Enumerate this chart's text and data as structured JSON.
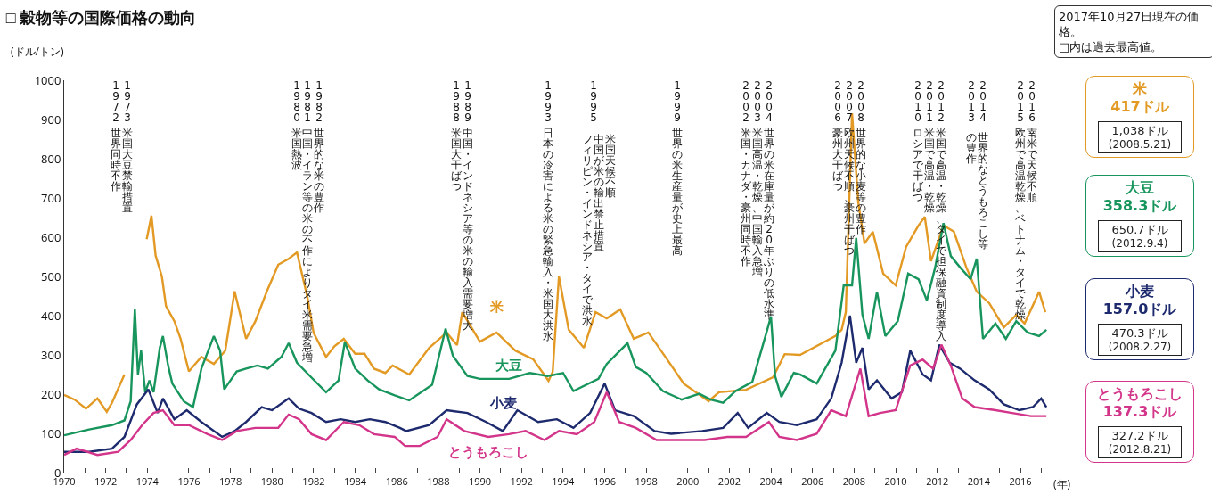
{
  "chart_data": {
    "type": "line",
    "title": "□ 穀物等の国際価格の動向",
    "ylabel": "(ドル/トン)",
    "xlabel": "(年)",
    "xlim": [
      1970,
      2017.5
    ],
    "ylim": [
      0,
      1000
    ],
    "xticks": [
      1970,
      {
        "value": 1971,
        "label": null
      },
      1972,
      {
        "value": 1973,
        "label": null
      },
      1974,
      {
        "value": 1975,
        "label": null
      },
      1976,
      {
        "value": 1977,
        "label": null
      },
      1978,
      {
        "value": 1979,
        "label": null
      },
      1980,
      {
        "value": 1981,
        "label": null
      },
      1982,
      {
        "value": 1983,
        "label": null
      },
      1984,
      {
        "value": 1985,
        "label": null
      },
      1986,
      {
        "value": 1987,
        "label": null
      },
      1988,
      {
        "value": 1989,
        "label": null
      },
      1990,
      {
        "value": 1991,
        "label": null
      },
      1992,
      {
        "value": 1993,
        "label": null
      },
      1994,
      {
        "value": 1995,
        "label": null
      },
      1996,
      {
        "value": 1997,
        "label": null
      },
      1998,
      {
        "value": 1999,
        "label": null
      },
      2000,
      {
        "value": 2001,
        "label": null
      },
      2002,
      {
        "value": 2003,
        "label": null
      },
      2004,
      {
        "value": 2005,
        "label": null
      },
      2006,
      {
        "value": 2007,
        "label": null
      },
      2008,
      {
        "value": 2009,
        "label": null
      },
      2010,
      {
        "value": 2011,
        "label": null
      },
      2012,
      {
        "value": 2013,
        "label": null
      },
      2014,
      {
        "value": 2015,
        "label": null
      },
      2016,
      {
        "value": 2017,
        "label": null
      }
    ],
    "yticks": [
      0,
      100,
      200,
      300,
      400,
      500,
      600,
      700,
      800,
      900,
      1000
    ],
    "legend": false,
    "marker": "none",
    "line_style": "solid",
    "series": [
      {
        "name": "米",
        "color": "#e39a24",
        "x": [
          1970.0,
          1970.5,
          1971.05,
          1971.6,
          1972.05,
          1972.3,
          1972.9,
          1973.3,
          1973.97,
          1974.2,
          1974.4,
          1974.7,
          1974.9,
          1975.3,
          1975.6,
          1976.0,
          1976.6,
          1977.2,
          1977.75,
          1978.2,
          1978.75,
          1979.2,
          1979.75,
          1980.3,
          1980.8,
          1981.2,
          1981.7,
          1982.0,
          1982.6,
          1983.0,
          1983.45,
          1984.0,
          1984.45,
          1984.9,
          1985.45,
          1985.8,
          1986.6,
          1987.56,
          1988.4,
          1988.9,
          1989.15,
          1990.0,
          1990.8,
          1991.7,
          1992.56,
          1993.3,
          1993.5,
          1993.8,
          1994.27,
          1995.0,
          1995.56,
          1996.1,
          1996.75,
          1997.4,
          1998.1,
          1999.0,
          1999.8,
          2001.0,
          2001.5,
          2002.8,
          2004.1,
          2004.66,
          2005.4,
          2007.1,
          2007.4,
          2007.6,
          2007.9,
          2008.2,
          2008.5,
          2008.9,
          2009.4,
          2010.0,
          2010.5,
          2011.1,
          2011.4,
          2011.7,
          2012.3,
          2012.8,
          2013.4,
          2013.9,
          2014.5,
          2015.2,
          2015.8,
          2016.2,
          2016.9,
          2017.2
        ],
        "values": [
          198,
          186,
          163,
          189,
          155,
          178,
          250,
          null,
          595,
          655,
          553,
          500,
          424,
          386,
          341,
          258,
          295,
          277,
          311,
          462,
          341,
          386,
          462,
          530,
          545,
          561,
          447,
          356,
          295,
          322,
          341,
          303,
          303,
          265,
          254,
          273,
          250,
          318,
          357,
          325,
          409,
          334,
          357,
          311,
          289,
          234,
          257,
          500,
          364,
          318,
          409,
          393,
          416,
          341,
          357,
          289,
          227,
          182,
          205,
          211,
          243,
          302,
          300,
          348,
          364,
          409,
          916,
          689,
          584,
          614,
          507,
          477,
          575,
          630,
          652,
          539,
          630,
          614,
          523,
          461,
          432,
          370,
          402,
          380,
          461,
          409
        ]
      },
      {
        "name": "大豆",
        "color": "#17955c",
        "x": [
          1970,
          1971.2,
          1972.3,
          1972.9,
          1973.2,
          1973.4,
          1973.55,
          1973.7,
          1973.9,
          1974.1,
          1974.3,
          1974.6,
          1974.75,
          1975.0,
          1975.2,
          1975.75,
          1976.2,
          1976.6,
          1977.2,
          1977.5,
          1977.7,
          1978.3,
          1978.75,
          1979.3,
          1979.8,
          1980.45,
          1980.8,
          1981.2,
          1981.9,
          1982.6,
          1983.2,
          1983.5,
          1984.0,
          1984.6,
          1985.15,
          1985.9,
          1986.6,
          1987.7,
          1988.35,
          1988.7,
          1989.4,
          1990.0,
          1991.4,
          1992.4,
          1993.26,
          1994.0,
          1994.5,
          1995.7,
          1996.1,
          1997.1,
          1997.5,
          1998.0,
          1998.8,
          1999.7,
          2000.55,
          2001.1,
          2001.7,
          2002.3,
          2003.1,
          2003.8,
          2004.0,
          2004.2,
          2004.5,
          2005.1,
          2005.4,
          2006.2,
          2007.1,
          2007.5,
          2007.9,
          2008.1,
          2008.4,
          2008.7,
          2009.1,
          2009.5,
          2010.1,
          2010.6,
          2011.1,
          2011.5,
          2011.9,
          2012.3,
          2012.65,
          2013.1,
          2013.6,
          2013.9,
          2014.2,
          2014.8,
          2015.3,
          2015.8,
          2016.35,
          2016.9,
          2017.25
        ],
        "values": [
          95,
          110,
          121,
          133,
          182,
          417,
          250,
          311,
          205,
          235,
          205,
          318,
          348,
          273,
          227,
          182,
          167,
          265,
          348,
          311,
          212,
          258,
          265,
          273,
          265,
          295,
          330,
          280,
          242,
          205,
          235,
          333,
          265,
          235,
          212,
          197,
          184,
          224,
          367,
          298,
          246,
          239,
          239,
          254,
          246,
          254,
          208,
          239,
          277,
          330,
          269,
          254,
          208,
          186,
          201,
          186,
          178,
          208,
          231,
          360,
          398,
          246,
          193,
          254,
          250,
          227,
          311,
          477,
          477,
          598,
          402,
          341,
          461,
          348,
          386,
          507,
          493,
          439,
          523,
          636,
          552,
          523,
          493,
          545,
          341,
          380,
          341,
          386,
          357,
          348,
          364
        ]
      },
      {
        "name": "小麦",
        "color": "#1d2a6e",
        "x": [
          1970,
          1971.2,
          1972.3,
          1972.9,
          1973.5,
          1974.05,
          1974.5,
          1974.75,
          1975.3,
          1975.9,
          1976.6,
          1977.6,
          1978.2,
          1978.75,
          1979.5,
          1980.0,
          1980.8,
          1981.3,
          1981.9,
          1982.6,
          1983.3,
          1984.0,
          1984.7,
          1985.45,
          1986.15,
          1986.45,
          1987.56,
          1988.4,
          1989.4,
          1990.3,
          1991.1,
          1991.8,
          1992.8,
          1993.7,
          1994.5,
          1995.3,
          1996.0,
          1996.5,
          1997.4,
          1998.4,
          1999.2,
          2000.7,
          2001.7,
          2002.4,
          2002.9,
          2003.8,
          2004.4,
          2005.25,
          2006.2,
          2006.9,
          2007.4,
          2007.8,
          2008.1,
          2008.4,
          2008.7,
          2009.1,
          2009.8,
          2010.3,
          2010.7,
          2011.3,
          2011.7,
          2012.1,
          2012.6,
          2013.1,
          2013.8,
          2014.5,
          2015.2,
          2015.95,
          2016.6,
          2017.0,
          2017.25
        ],
        "values": [
          53,
          53,
          61,
          91,
          174,
          212,
          152,
          189,
          136,
          159,
          129,
          91,
          106,
          129,
          167,
          159,
          189,
          163,
          152,
          129,
          136,
          129,
          136,
          129,
          114,
          106,
          121,
          159,
          152,
          129,
          106,
          159,
          129,
          136,
          114,
          152,
          227,
          159,
          144,
          106,
          99,
          106,
          114,
          152,
          114,
          152,
          129,
          121,
          136,
          189,
          280,
          400,
          280,
          318,
          212,
          235,
          189,
          205,
          311,
          250,
          235,
          326,
          280,
          265,
          235,
          212,
          174,
          159,
          167,
          189,
          167
        ]
      },
      {
        "name": "とうもろこし",
        "color": "#d3358a",
        "x": [
          1970,
          1970.6,
          1971.6,
          1972.6,
          1973.2,
          1973.75,
          1974.3,
          1974.75,
          1975.3,
          1976.0,
          1976.9,
          1977.6,
          1978.3,
          1979.2,
          1980.3,
          1980.8,
          1981.3,
          1981.9,
          1982.6,
          1983.45,
          1984.2,
          1984.9,
          1985.9,
          1986.4,
          1987.1,
          1987.96,
          1988.4,
          1989.25,
          1990.4,
          1991.4,
          1992.2,
          1993.1,
          1993.8,
          1994.66,
          1995.5,
          1996.1,
          1996.7,
          1997.5,
          1998.5,
          1999.7,
          2000.8,
          2001.9,
          2002.8,
          2003.9,
          2004.4,
          2005.25,
          2006.2,
          2006.9,
          2007.6,
          2008.3,
          2008.7,
          2009.25,
          2010.0,
          2010.7,
          2011.3,
          2011.8,
          2012.2,
          2012.65,
          2013.2,
          2013.8,
          2014.8,
          2015.6,
          2016.5,
          2017.25
        ],
        "values": [
          45,
          61,
          45,
          53,
          83,
          121,
          152,
          159,
          121,
          121,
          98,
          83,
          106,
          114,
          114,
          148,
          136,
          98,
          83,
          129,
          121,
          98,
          91,
          68,
          68,
          91,
          136,
          106,
          91,
          98,
          106,
          83,
          106,
          98,
          129,
          205,
          129,
          114,
          83,
          83,
          83,
          91,
          91,
          129,
          91,
          83,
          99,
          159,
          144,
          265,
          144,
          152,
          159,
          273,
          288,
          265,
          326,
          273,
          189,
          167,
          159,
          152,
          144,
          144
        ]
      }
    ],
    "annotations": [
      "1972 世界同時不作",
      "1973 米国大豆禁輸措置",
      "1980 米国熱波",
      "1981 中国・イラン等の米の不作によりタイ米需要急増",
      "1982 世界的な米の豊作",
      "1988 米国大干ばつ",
      "1989 中国・インドネシア等の米の輸入需要増大",
      "1993 日本の冷害による米の緊急輸入・米国大洪水",
      "1995",
      "米国天候不順",
      "中国が米の輸出禁止措置",
      "フィリピン・インドネシア・タイで洪水",
      "1999 世界の米生産量が史上最高",
      "2002 米国・カナダ・豪州同時不作",
      "2003 米国高温・乾燥、中国輸入急増",
      "2004 世界の米在庫量が約20年ぶりの低水準",
      "2006 豪州大干ばつ",
      "2007 欧州天候不順、豪州干ばつ",
      "2008 世界的な小麦等の豊作",
      "2010 ロシアで干ばつ",
      "2011 米国で高温・乾燥",
      "2012 米国で高温・乾燥、タイで担保融資制度導入",
      "2013",
      "2014",
      "世界的なとうもろこし等",
      "の豊作",
      "2015 欧州で高温乾燥、ベトナム・タイで乾燥",
      "2016 南米で天候不順",
      "2017年10月27日現在の価格。",
      "□内は過去最高値。",
      "米",
      "417ドル",
      "1,038ドル",
      "(2008.5.21)",
      "大豆",
      "358.3ドル",
      "650.7ドル",
      "(2012.9.4)",
      "小麦",
      "157.0ドル",
      "470.3ドル",
      "(2008.2.27)",
      "とうもろこし",
      "137.3ドル",
      "327.2ドル",
      "(2012.8.21)"
    ]
  }
}
